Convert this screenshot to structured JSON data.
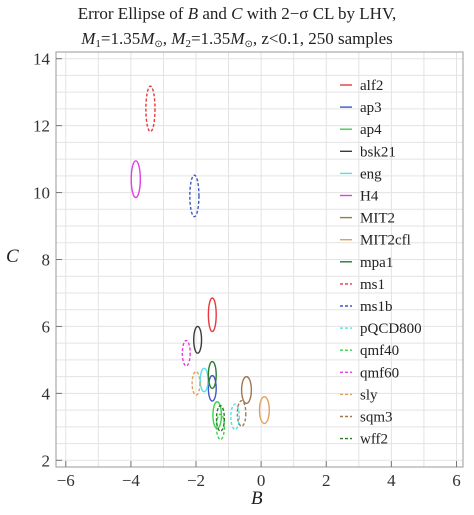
{
  "chart_data": {
    "type": "scatter",
    "title_line1": {
      "pre": "Error Ellipse of ",
      "a": "B",
      "mid": " and ",
      "b": "C",
      "post": " with 2−σ CL by LHV,"
    },
    "title_line2": {
      "m": "M",
      "sub1": "1",
      "v1": "=1.35",
      "msun": "M",
      "sun": "⊙",
      "sep": ", ",
      "sub2": "2",
      "v2": "=1.35",
      "post": ", z<0.1, 250 samples"
    },
    "xlabel": "B",
    "ylabel": "C",
    "xlim": [
      -6.3,
      6.2
    ],
    "ylim": [
      1.8,
      14.2
    ],
    "xticks": [
      -6,
      -4,
      -2,
      0,
      2,
      4,
      6
    ],
    "yticks": [
      2,
      4,
      6,
      8,
      10,
      12,
      14
    ],
    "grid": true,
    "legend_position": "right",
    "series": [
      {
        "name": "alf2",
        "color": "#e8383d",
        "dash": false,
        "center": [
          -1.5,
          6.35
        ],
        "rx": 0.12,
        "ry": 0.5
      },
      {
        "name": "ap3",
        "color": "#3a58c7",
        "dash": false,
        "center": [
          -1.5,
          4.15
        ],
        "rx": 0.12,
        "ry": 0.38
      },
      {
        "name": "ap4",
        "color": "#3cd24a",
        "dash": false,
        "center": [
          -1.35,
          3.35
        ],
        "rx": 0.13,
        "ry": 0.4
      },
      {
        "name": "bsk21",
        "color": "#3a3a3a",
        "dash": false,
        "center": [
          -1.95,
          5.6
        ],
        "rx": 0.12,
        "ry": 0.4
      },
      {
        "name": "eng",
        "color": "#4ee4ea",
        "dash": false,
        "center": [
          -1.75,
          4.4
        ],
        "rx": 0.12,
        "ry": 0.35
      },
      {
        "name": "H4",
        "color": "#e040e0",
        "dash": false,
        "center": [
          -3.85,
          10.4
        ],
        "rx": 0.14,
        "ry": 0.55
      },
      {
        "name": "MIT2",
        "color": "#a07850",
        "dash": false,
        "center": [
          -0.45,
          4.1
        ],
        "rx": 0.15,
        "ry": 0.4
      },
      {
        "name": "MIT2cfl",
        "color": "#e0a060",
        "dash": false,
        "center": [
          0.1,
          3.5
        ],
        "rx": 0.15,
        "ry": 0.4
      },
      {
        "name": "mpa1",
        "color": "#2a7a2a",
        "dash": false,
        "center": [
          -1.5,
          4.55
        ],
        "rx": 0.12,
        "ry": 0.4
      },
      {
        "name": "ms1",
        "color": "#e8383d",
        "dash": true,
        "center": [
          -3.4,
          12.5
        ],
        "rx": 0.14,
        "ry": 0.68
      },
      {
        "name": "ms1b",
        "color": "#3a58c7",
        "dash": true,
        "center": [
          -2.05,
          9.9
        ],
        "rx": 0.14,
        "ry": 0.62
      },
      {
        "name": "pQCD800",
        "color": "#4ee4ea",
        "dash": true,
        "center": [
          -0.8,
          3.3
        ],
        "rx": 0.13,
        "ry": 0.38
      },
      {
        "name": "qmf40",
        "color": "#3cd24a",
        "dash": true,
        "center": [
          -1.25,
          3.0
        ],
        "rx": 0.12,
        "ry": 0.38
      },
      {
        "name": "qmf60",
        "color": "#e040e0",
        "dash": true,
        "center": [
          -2.3,
          5.2
        ],
        "rx": 0.12,
        "ry": 0.38
      },
      {
        "name": "sly",
        "color": "#e0a060",
        "dash": true,
        "center": [
          -2.0,
          4.3
        ],
        "rx": 0.12,
        "ry": 0.35
      },
      {
        "name": "sqm3",
        "color": "#a07850",
        "dash": true,
        "center": [
          -0.6,
          3.4
        ],
        "rx": 0.13,
        "ry": 0.38
      },
      {
        "name": "wff2",
        "color": "#2a7a2a",
        "dash": true,
        "center": [
          -1.25,
          3.25
        ],
        "rx": 0.12,
        "ry": 0.38
      }
    ]
  }
}
